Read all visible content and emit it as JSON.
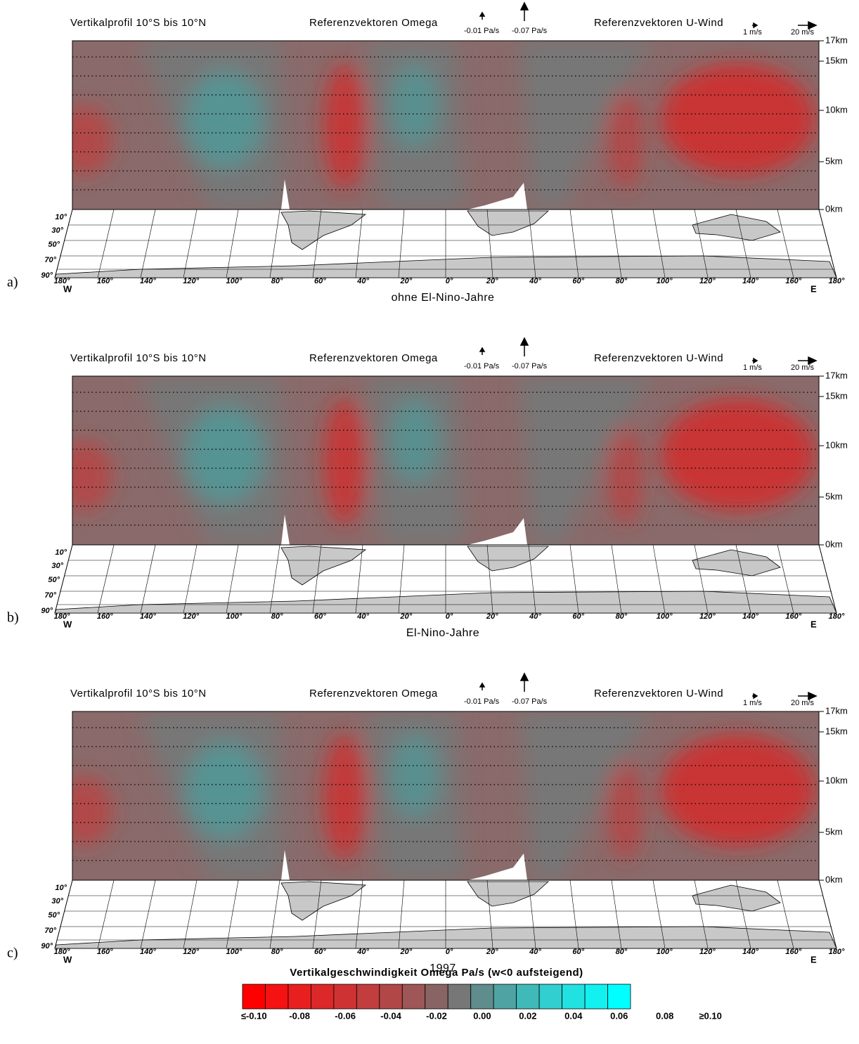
{
  "panels": [
    {
      "letter": "a)",
      "header": {
        "title": "Vertikalprofil 10°S bis 10°N",
        "omega_ref": "Referenzvektoren Omega",
        "omega_small": "-0.01 Pa/s",
        "omega_large": "-0.07 Pa/s",
        "wind_ref": "Referenzvektoren U-Wind",
        "wind_small": "1 m/s",
        "wind_large": "20 m/s"
      },
      "heights": [
        "17km",
        "15km",
        "10km",
        "5km",
        "0km"
      ],
      "latitudes": [
        "10°",
        "30°",
        "50°",
        "70°",
        "90°"
      ],
      "longitudes": [
        "180°",
        "160°",
        "140°",
        "120°",
        "100°",
        "80°",
        "60°",
        "40°",
        "20°",
        "0°",
        "20°",
        "40°",
        "60°",
        "80°",
        "100°",
        "120°",
        "140°",
        "160°",
        "180°"
      ],
      "west": "W",
      "east": "E",
      "subtitle": "ohne El-Nino-Jahre"
    },
    {
      "letter": "b)",
      "header": {
        "title": "Vertikalprofil 10°S bis 10°N",
        "omega_ref": "Referenzvektoren Omega",
        "omega_small": "-0.01 Pa/s",
        "omega_large": "-0.07 Pa/s",
        "wind_ref": "Referenzvektoren U-Wind",
        "wind_small": "1 m/s",
        "wind_large": "20 m/s"
      },
      "heights": [
        "17km",
        "15km",
        "10km",
        "5km",
        "0km"
      ],
      "latitudes": [
        "10°",
        "30°",
        "50°",
        "70°",
        "90°"
      ],
      "longitudes": [
        "180°",
        "160°",
        "140°",
        "120°",
        "100°",
        "80°",
        "60°",
        "40°",
        "20°",
        "0°",
        "20°",
        "40°",
        "60°",
        "80°",
        "100°",
        "120°",
        "140°",
        "160°",
        "180°"
      ],
      "west": "W",
      "east": "E",
      "subtitle": "El-Nino-Jahre"
    },
    {
      "letter": "c)",
      "header": {
        "title": "Vertikalprofil 10°S bis 10°N",
        "omega_ref": "Referenzvektoren Omega",
        "omega_small": "-0.01 Pa/s",
        "omega_large": "-0.07 Pa/s",
        "wind_ref": "Referenzvektoren U-Wind",
        "wind_small": "1 m/s",
        "wind_large": "20 m/s"
      },
      "heights": [
        "17km",
        "15km",
        "10km",
        "5km",
        "0km"
      ],
      "latitudes": [
        "10°",
        "30°",
        "50°",
        "70°",
        "90°"
      ],
      "longitudes": [
        "180°",
        "160°",
        "140°",
        "120°",
        "100°",
        "80°",
        "60°",
        "40°",
        "20°",
        "0°",
        "20°",
        "40°",
        "60°",
        "80°",
        "100°",
        "120°",
        "140°",
        "160°",
        "180°"
      ],
      "west": "W",
      "east": "E",
      "subtitle": "1997"
    }
  ],
  "colorbar": {
    "title": "Vertikalgeschwindigkeit Omega Pa/s (w<0 aufsteigend)",
    "labels": [
      "≤-0.10",
      "-0.08",
      "-0.06",
      "-0.04",
      "-0.02",
      "0.00",
      "0.02",
      "0.04",
      "0.06",
      "0.08",
      "≥0.10"
    ],
    "colors": [
      "#ff0000",
      "#f41212",
      "#e81f1f",
      "#dc2828",
      "#cf3232",
      "#c23d3d",
      "#b24747",
      "#9e5656",
      "#886464",
      "#777777",
      "#5f8c8c",
      "#4fa3a3",
      "#40b9b9",
      "#31cfcf",
      "#22e1e1",
      "#12f0f0",
      "#00ffff"
    ]
  }
}
